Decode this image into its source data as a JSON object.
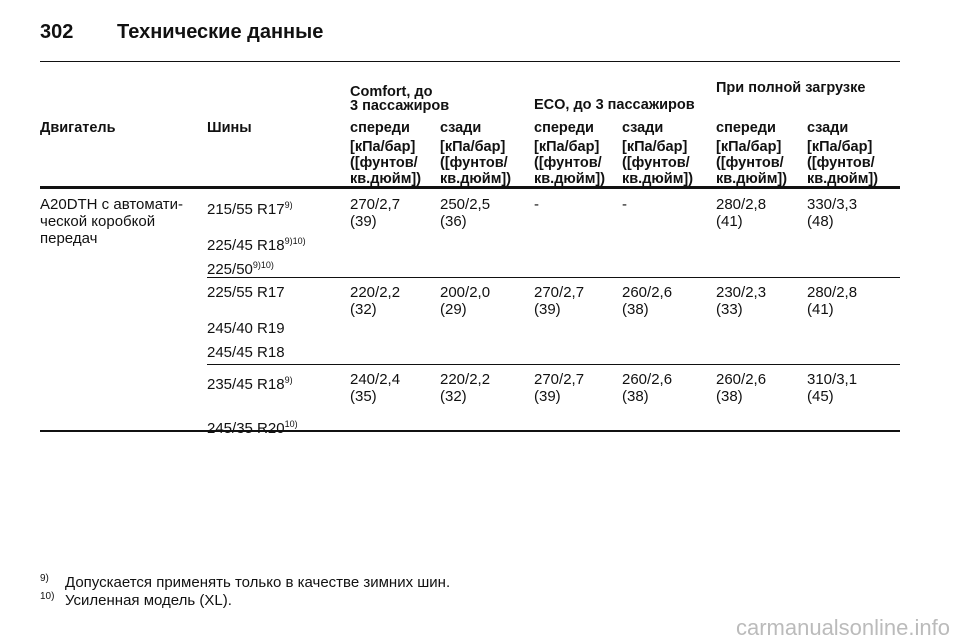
{
  "header": {
    "page": "302",
    "title": "Технические данные"
  },
  "table": {
    "group_headers": [
      [
        "Comfort, до",
        "3 пассажиров"
      ],
      [
        "ECO, до 3 пассажиров"
      ],
      [
        "При полной загрузке"
      ]
    ],
    "col_headers": [
      "Двигатель",
      "Шины",
      "спереди",
      "сзади",
      "спереди",
      "сзади",
      "спереди",
      "сзади"
    ],
    "units": [
      [
        "[кПа/бар]",
        "([фунтов/",
        "кв.дюйм])"
      ],
      [
        "[кПа/бар]",
        "([фунтов/",
        "кв.дюйм])"
      ],
      [
        "[кПа/бар]",
        "([фунтов/",
        "кв.дюйм])"
      ],
      [
        "[кПа/бар]",
        "([фунтов/",
        "кв.дюйм])"
      ],
      [
        "[кПа/бар]",
        "([фунтов/",
        "кв.дюйм])"
      ],
      [
        "[кПа/бар]",
        "([фунтов/",
        "кв.дюйм])"
      ]
    ],
    "engine": [
      "A20DTH с автомати-",
      "ческой коробкой",
      "передач"
    ],
    "groups": [
      {
        "tires": [
          {
            "size": "215/55 R17",
            "note": "9)"
          },
          {
            "size": "225/45 R18",
            "note": "9)10)"
          },
          {
            "size": "225/50",
            "note": "9)10)"
          }
        ],
        "values": [
          [
            "270/2,7",
            "(39)"
          ],
          [
            "250/2,5",
            "(36)"
          ],
          [
            "-"
          ],
          [
            "-"
          ],
          [
            "280/2,8",
            "(41)"
          ],
          [
            "330/3,3",
            "(48)"
          ]
        ]
      },
      {
        "tires": [
          {
            "size": "225/55 R17"
          },
          {
            "size": "245/40 R19"
          },
          {
            "size": "245/45 R18"
          }
        ],
        "values": [
          [
            "220/2,2",
            "(32)"
          ],
          [
            "200/2,0",
            "(29)"
          ],
          [
            "270/2,7",
            "(39)"
          ],
          [
            "260/2,6",
            "(38)"
          ],
          [
            "230/2,3",
            "(33)"
          ],
          [
            "280/2,8",
            "(41)"
          ]
        ]
      },
      {
        "tires": [
          {
            "size": "235/45 R18",
            "note": "9)"
          },
          {
            "size": "245/35 R20",
            "note": "10)"
          }
        ],
        "values": [
          [
            "240/2,4",
            "(35)"
          ],
          [
            "220/2,2",
            "(32)"
          ],
          [
            "270/2,7",
            "(39)"
          ],
          [
            "260/2,6",
            "(38)"
          ],
          [
            "260/2,6",
            "(38)"
          ],
          [
            "310/3,1",
            "(45)"
          ]
        ]
      }
    ]
  },
  "footnotes": [
    {
      "mark": "9)",
      "text": "Допускается применять только в качестве зимних шин."
    },
    {
      "mark": "10)",
      "text": "Усиленная модель (XL)."
    }
  ],
  "watermark": "carmanualsonline.info"
}
